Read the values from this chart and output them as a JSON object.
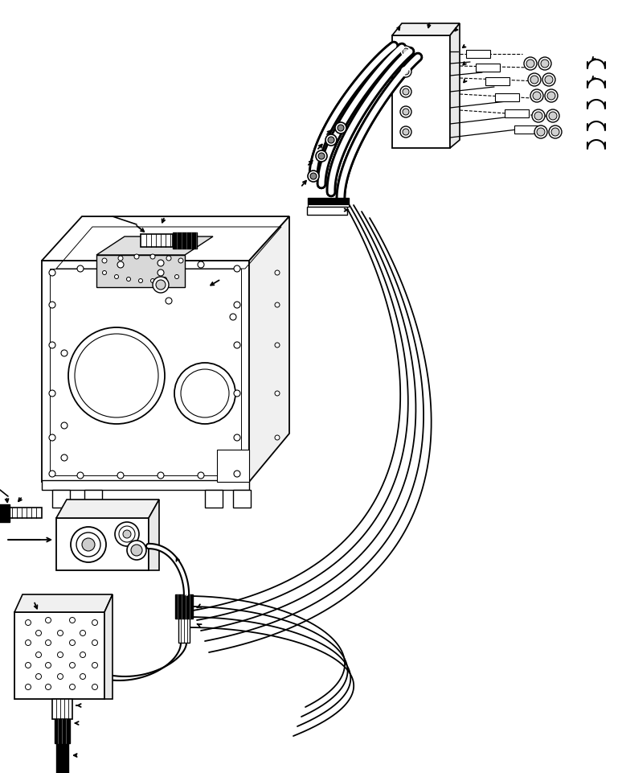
{
  "bg_color": "#ffffff",
  "line_color": "#000000",
  "figsize": [
    7.74,
    9.62
  ],
  "dpi": 100
}
